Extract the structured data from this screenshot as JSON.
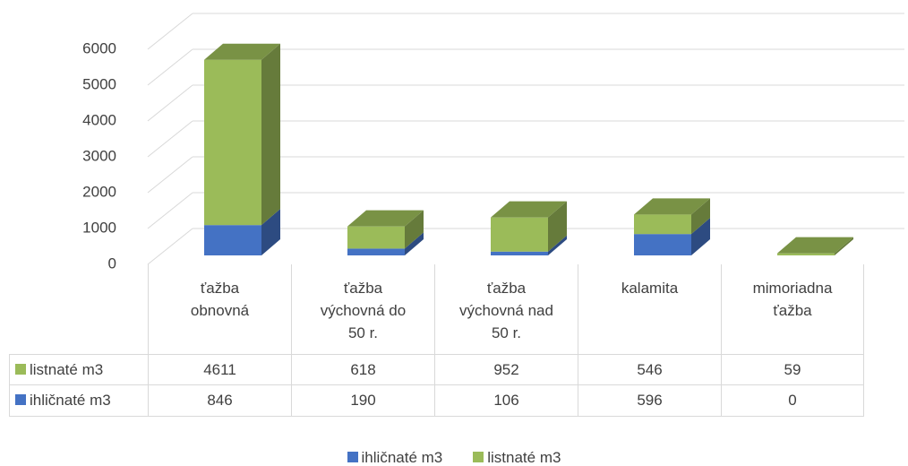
{
  "chart_data": {
    "type": "bar",
    "stacked": true,
    "three_d": true,
    "categories": [
      "ťažba obnovná",
      "ťažba výchovná do 50 r.",
      "ťažba výchovná nad 50 r.",
      "kalamita",
      "mimoriadna ťažba"
    ],
    "series": [
      {
        "name": "ihličnaté m3",
        "color": "#4472c4",
        "values": [
          846,
          190,
          106,
          596,
          0
        ]
      },
      {
        "name": "listnaté m3",
        "color": "#9bbb59",
        "values": [
          4611,
          618,
          952,
          546,
          59
        ]
      }
    ],
    "ylim": [
      0,
      6000
    ],
    "yticks": [
      0,
      1000,
      2000,
      3000,
      4000,
      5000,
      6000
    ],
    "grid": true,
    "legend": "bottom",
    "data_table": true
  }
}
